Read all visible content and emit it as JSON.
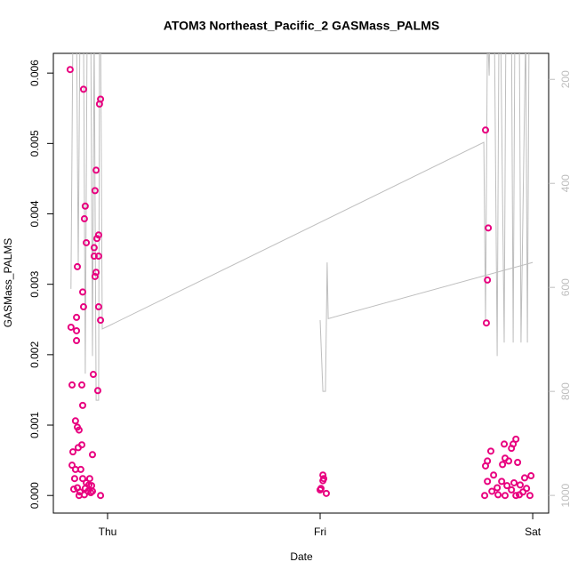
{
  "chart_data": {
    "type": "scatter",
    "title": "ATOM3 Northeast_Pacific_2 GASMass_PALMS",
    "xlabel": "Date",
    "ylabel": "GASMass_PALMS",
    "xlim": [
      -0.255,
      2.075
    ],
    "xticks": [
      {
        "value": 0,
        "label": "Thu"
      },
      {
        "value": 1,
        "label": "Fri"
      },
      {
        "value": 2,
        "label": "Sat"
      }
    ],
    "ylim": [
      -0.00025,
      0.00628
    ],
    "yticks": [
      {
        "value": 0,
        "label": "0.000"
      },
      {
        "value": 0.001,
        "label": "0.001"
      },
      {
        "value": 0.002,
        "label": "0.002"
      },
      {
        "value": 0.003,
        "label": "0.003"
      },
      {
        "value": 0.004,
        "label": "0.004"
      },
      {
        "value": 0.005,
        "label": "0.005"
      },
      {
        "value": 0.006,
        "label": "0.006"
      }
    ],
    "y2lim": [
      1034,
      150
    ],
    "y2ticks": [
      200,
      400,
      600,
      800,
      1000
    ],
    "series": [
      {
        "type": "scatter",
        "color": "#e8007f",
        "x": [
          -0.176,
          -0.113,
          -0.033,
          -0.038,
          -0.054,
          -0.059,
          -0.105,
          -0.109,
          -0.042,
          -0.05,
          -0.1,
          -0.063,
          -0.063,
          -0.042,
          -0.142,
          -0.054,
          -0.059,
          -0.117,
          -0.113,
          -0.042,
          -0.146,
          -0.033,
          -0.172,
          -0.146,
          -0.146,
          -0.067,
          -0.167,
          -0.121,
          -0.046,
          -0.117,
          -0.151,
          -0.142,
          -0.134,
          -0.121,
          -0.138,
          -0.163,
          -0.071,
          -0.167,
          -0.151,
          -0.126,
          -0.155,
          -0.117,
          -0.084,
          -0.1,
          -0.088,
          -0.075,
          -0.142,
          -0.105,
          -0.159,
          -0.092,
          -0.071,
          -0.13,
          -0.079,
          -0.109,
          -0.033,
          -0.134,
          1.013,
          1.017,
          1.013,
          1.004,
          1.0,
          1.029,
          1.778,
          1.791,
          1.787,
          1.782,
          1.921,
          1.908,
          1.866,
          1.9,
          1.803,
          1.87,
          1.787,
          1.887,
          1.858,
          1.778,
          1.929,
          1.816,
          1.992,
          1.962,
          1.787,
          1.854,
          1.912,
          1.941,
          1.879,
          1.833,
          1.971,
          1.9,
          1.808,
          1.954,
          1.774,
          1.837,
          1.87,
          1.921,
          1.987,
          1.937
        ],
        "values": [
          0.00605,
          0.00577,
          0.00563,
          0.00556,
          0.00462,
          0.00433,
          0.00411,
          0.00393,
          0.0037,
          0.00365,
          0.00359,
          0.00352,
          0.0034,
          0.0034,
          0.00325,
          0.00317,
          0.00311,
          0.00289,
          0.00268,
          0.00268,
          0.00253,
          0.00249,
          0.00239,
          0.00234,
          0.0022,
          0.00172,
          0.00157,
          0.00157,
          0.00149,
          0.00128,
          0.00106,
          0.00097,
          0.00093,
          0.00072,
          0.00068,
          0.00062,
          0.00058,
          0.00043,
          0.00037,
          0.00037,
          0.00024,
          0.00024,
          0.00024,
          0.00018,
          0.00015,
          0.00014,
          0.00011,
          0.0001,
          9e-05,
          6e-05,
          6e-05,
          5e-05,
          4e-05,
          1e-05,
          0,
          0,
          0.00029,
          0.00024,
          0.00021,
          0.0001,
          8e-05,
          3e-05,
          0.00519,
          0.0038,
          0.00306,
          0.00245,
          0.0008,
          0.00073,
          0.00073,
          0.00067,
          0.00063,
          0.00053,
          0.00049,
          0.00049,
          0.00044,
          0.00042,
          0.00047,
          0.00029,
          0.00028,
          0.00025,
          0.0002,
          0.0002,
          0.00018,
          0.00015,
          0.00014,
          0.00011,
          0.0001,
          8e-05,
          6e-05,
          5e-05,
          0,
          1e-05,
          0,
          0,
          0,
          1e-05
        ]
      },
      {
        "type": "line",
        "axis": "y2",
        "color": "#bebebe",
        "x": [
          -0.172,
          -0.163,
          -0.146,
          -0.138,
          -0.13,
          -0.113,
          -0.105,
          -0.096,
          -0.079,
          -0.071,
          -0.063,
          -0.054,
          -0.042,
          -0.038,
          -0.033,
          -0.025,
          1.77,
          1.778,
          1.787,
          1.795,
          1.799,
          1.82,
          1.833,
          1.841,
          1.849,
          1.866,
          1.874,
          1.9,
          1.908,
          1.916,
          1.937,
          1.945,
          1.967,
          1.975,
          1.983,
          2.0,
          null,
          1.0,
          1.013,
          1.025,
          1.033,
          1.038,
          2.0
        ],
        "values": [
          603,
          99,
          99,
          561,
          99,
          99,
          766,
          99,
          99,
          732,
          99,
          817,
          817,
          99,
          99,
          680,
          321,
          663,
          99,
          193,
          99,
          99,
          732,
          99,
          99,
          706,
          99,
          99,
          706,
          99,
          99,
          706,
          99,
          706,
          99,
          99,
          null,
          663,
          800,
          800,
          552,
          660,
          552
        ]
      }
    ]
  }
}
